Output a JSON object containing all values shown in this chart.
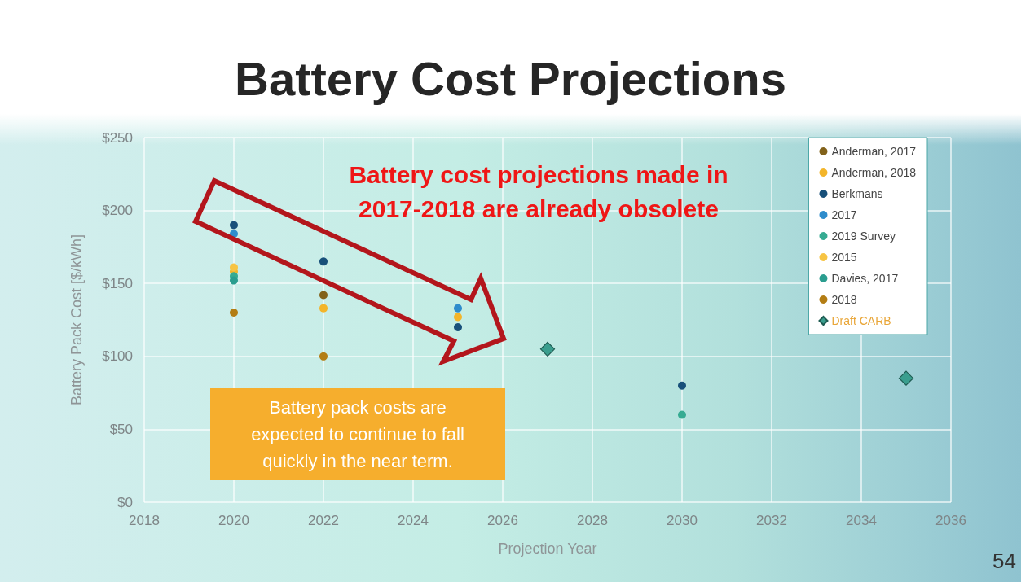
{
  "chart_data": {
    "type": "scatter",
    "title": "Battery Cost Projections",
    "xlabel": "Projection Year",
    "ylabel": "Battery Pack Cost [$/kWh]",
    "annotations": [
      "Battery cost projections made in 2017-2018 are already obsolete",
      "Battery pack costs are expected to continue to fall quickly in the near term.",
      "54"
    ],
    "xlim": [
      2018,
      2036
    ],
    "xticks": [
      2018,
      2020,
      2022,
      2024,
      2026,
      2028,
      2030,
      2032,
      2034,
      2036
    ],
    "ylim": [
      0,
      250
    ],
    "yticks": [
      {
        "value": 0,
        "label": "$0"
      },
      {
        "value": 50,
        "label": "$50"
      },
      {
        "value": 100,
        "label": "$100"
      },
      {
        "value": 150,
        "label": "$150"
      },
      {
        "value": 200,
        "label": "$200"
      },
      {
        "value": 250,
        "label": "$250"
      }
    ],
    "grid": true,
    "legend": "top right",
    "marker": "circle",
    "series": [
      {
        "name": "Anderman, 2017",
        "color": "#82621a",
        "x": [
          2022
        ],
        "values": [
          142
        ]
      },
      {
        "name": "Anderman, 2018",
        "color": "#f3b52a",
        "x": [
          2020,
          2022,
          2025
        ],
        "values": [
          158,
          133,
          127
        ]
      },
      {
        "name": "Berkmans",
        "color": "#18507a",
        "x": [
          2020,
          2022,
          2025,
          2030
        ],
        "values": [
          190,
          165,
          120,
          80
        ]
      },
      {
        "name": "2017",
        "color": "#2e8ccc",
        "x": [
          2020,
          2025
        ],
        "values": [
          184,
          133
        ]
      },
      {
        "name": "2019 Survey",
        "color": "#36ab92",
        "x": [
          2020,
          2030
        ],
        "values": [
          155,
          60
        ]
      },
      {
        "name": "2015",
        "color": "#f7c443",
        "x": [
          2020
        ],
        "values": [
          161
        ]
      },
      {
        "name": "Davies, 2017",
        "color": "#2a9d8f",
        "x": [
          2020
        ],
        "values": [
          152
        ]
      },
      {
        "name": "2018",
        "color": "#b37d14",
        "x": [
          2020,
          2022
        ],
        "values": [
          130,
          100
        ]
      },
      {
        "name": "Draft CARB",
        "color": "#3a9e8e",
        "marker": "diamond",
        "x": [
          2027,
          2035
        ],
        "values": [
          105,
          85
        ]
      }
    ]
  }
}
